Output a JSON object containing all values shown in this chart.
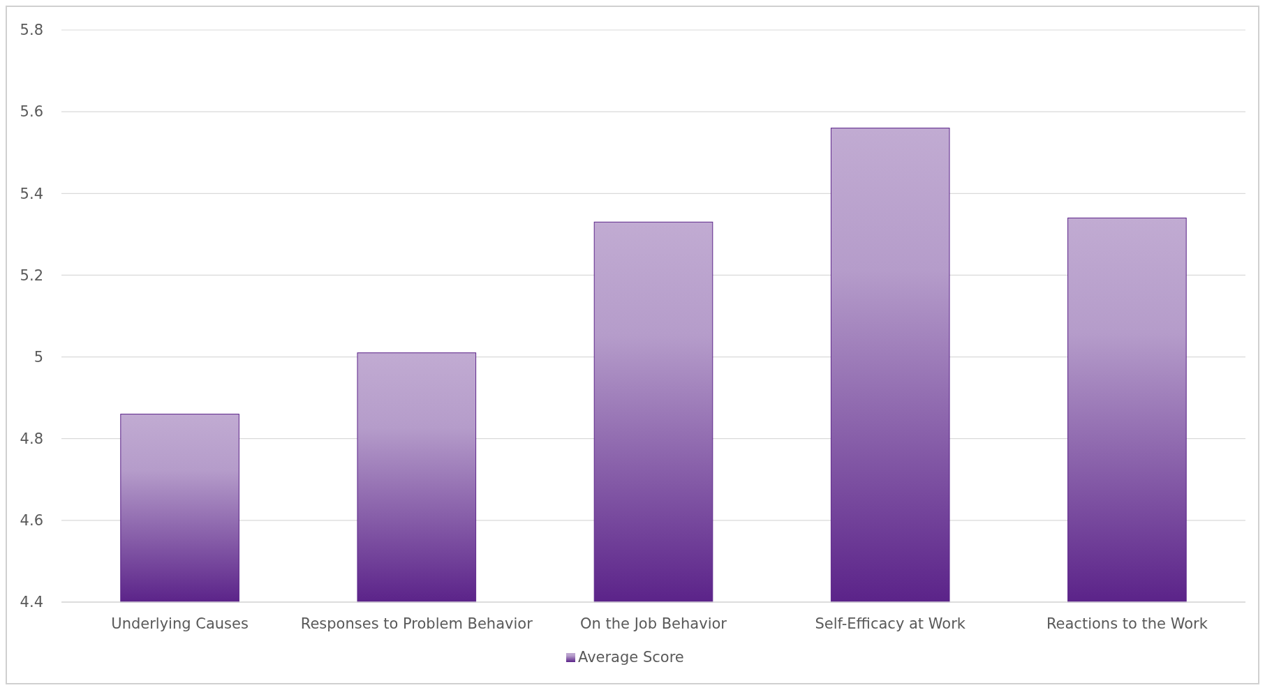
{
  "chart_data": {
    "type": "bar",
    "categories": [
      "Underlying Causes",
      "Responses to Problem Behavior",
      "On the Job Behavior",
      "Self-Efficacy at Work",
      "Reactions to the Work"
    ],
    "series": [
      {
        "name": "Average Score",
        "color": "#5b2389",
        "values": [
          4.86,
          5.01,
          5.33,
          5.56,
          5.34
        ]
      }
    ],
    "ylim": [
      4.4,
      5.8
    ],
    "yticks": [
      4.4,
      4.6,
      4.8,
      5,
      5.2,
      5.4,
      5.6,
      5.8
    ],
    "grid": "y",
    "legend": "bottom"
  }
}
